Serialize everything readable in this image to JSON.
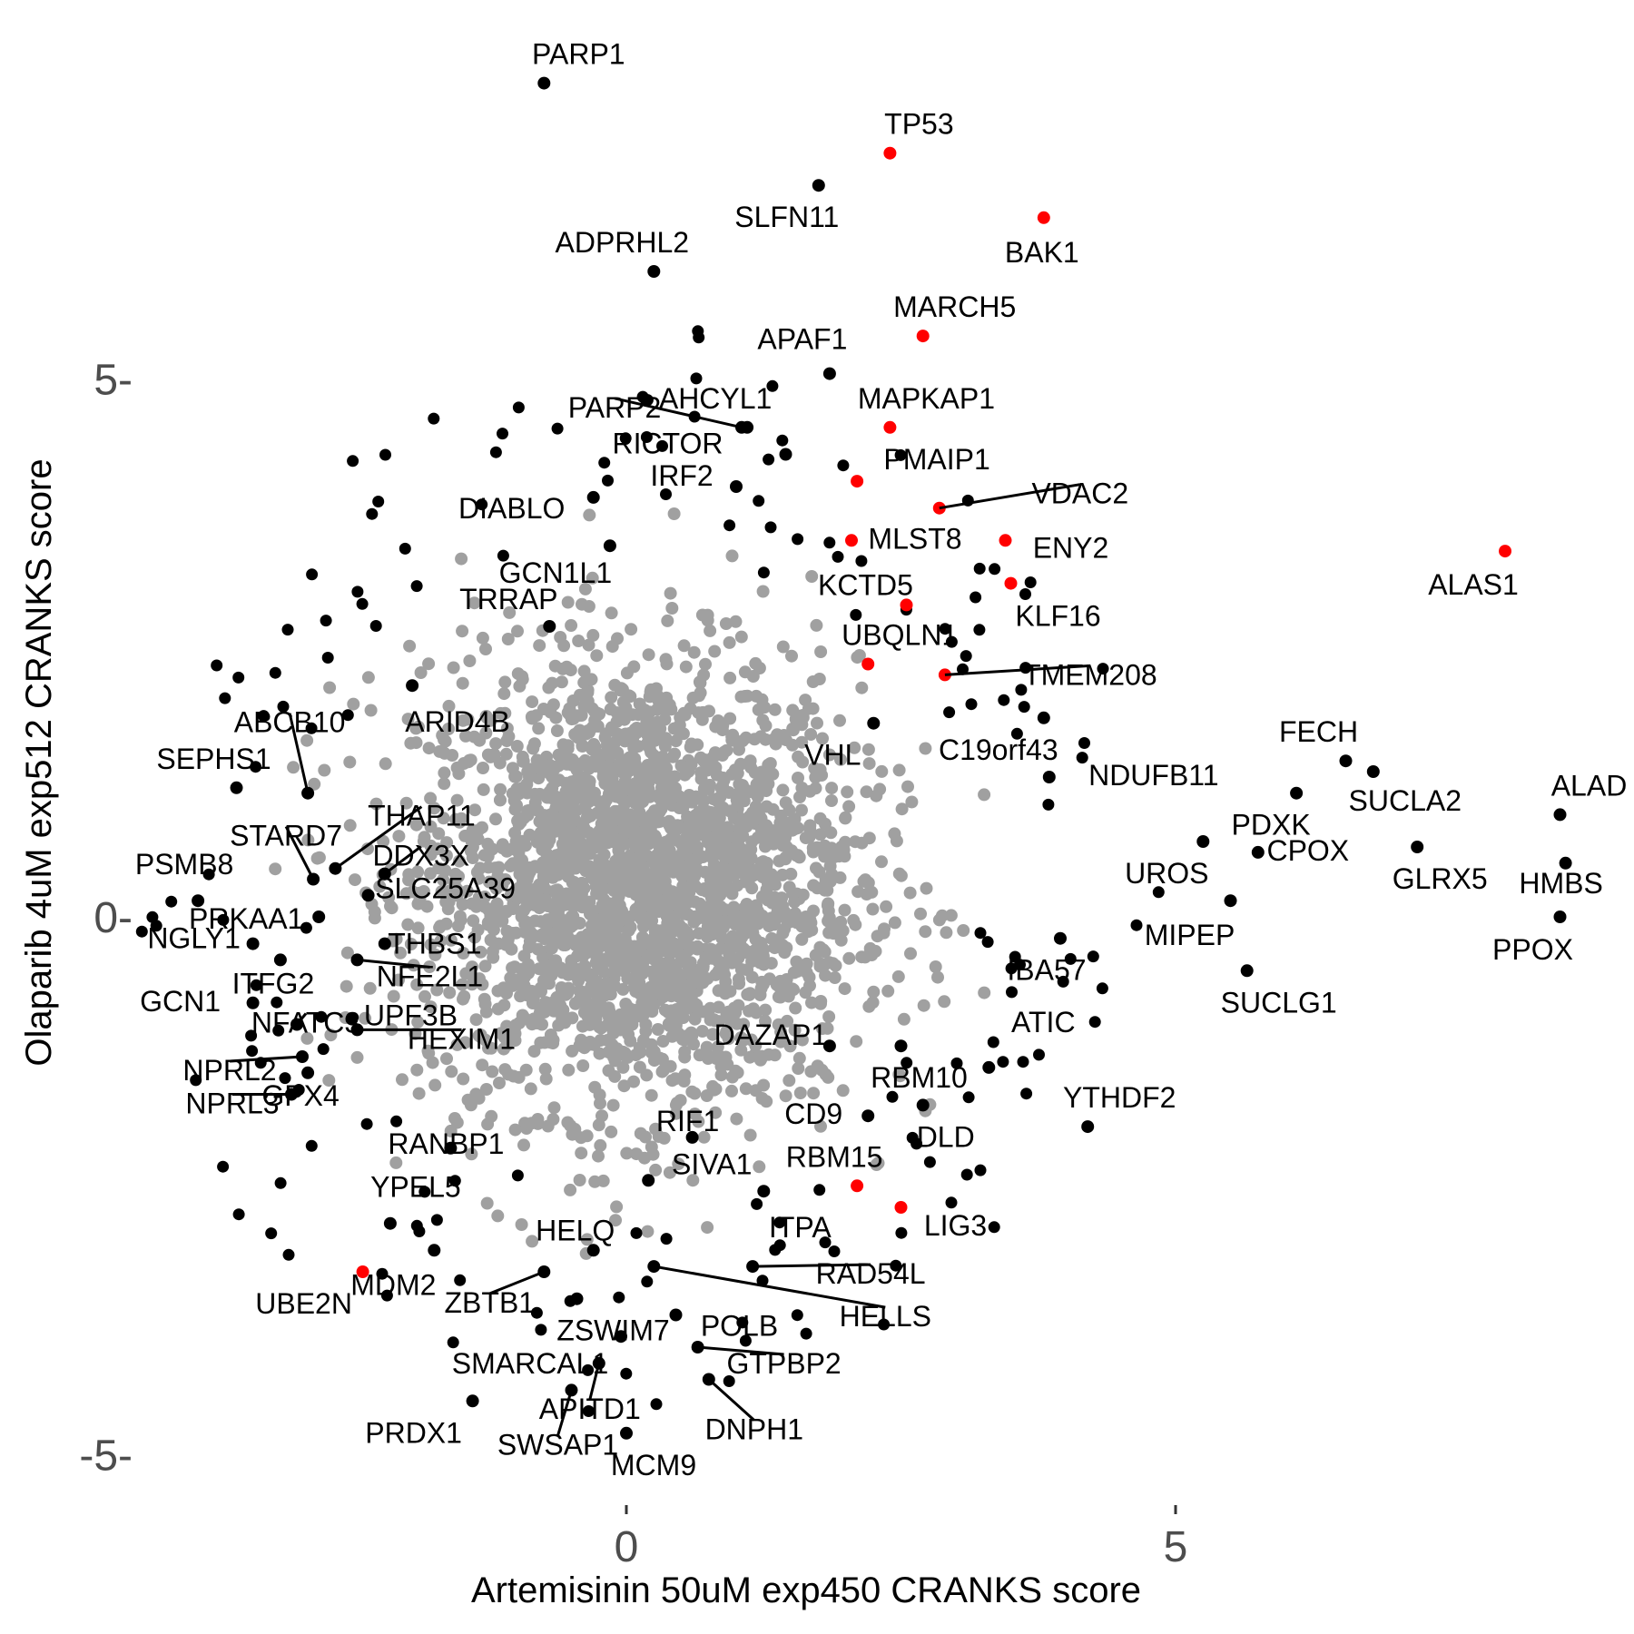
{
  "chart_data": {
    "type": "scatter",
    "title": "",
    "xlabel": "Artemisinin 50uM exp450 CRANKS score",
    "ylabel": "Olaparib 4uM exp512 CRANKS score",
    "xlim": [
      -4.6,
      9.0
    ],
    "ylim": [
      -5.4,
      7.8
    ],
    "x_ticks": [
      {
        "value": 0,
        "label": "0"
      },
      {
        "value": 5,
        "label": "5"
      }
    ],
    "y_ticks": [
      {
        "value": -5,
        "label": "-5-"
      },
      {
        "value": 0,
        "label": "0-"
      },
      {
        "value": 5,
        "label": "5-"
      }
    ],
    "grid": false,
    "legend": "none",
    "colors": {
      "background_cloud": "#a0a0a0",
      "black_points": "#000000",
      "red_points": "#ff0000",
      "connector": "#000000"
    },
    "background_cloud": {
      "description": "dense cloud of non-significant genes",
      "center": [
        0.1,
        0.3
      ],
      "spread": [
        1.0,
        1.05
      ]
    },
    "labeled_points": [
      {
        "label": "PARP1",
        "x": -0.75,
        "y": 7.75,
        "color": "black"
      },
      {
        "label": "TP53",
        "x": 2.4,
        "y": 7.1,
        "color": "red"
      },
      {
        "label": "SLFN11",
        "x": 1.75,
        "y": 6.8,
        "color": "black"
      },
      {
        "label": "BAK1",
        "x": 3.8,
        "y": 6.5,
        "color": "red"
      },
      {
        "label": "ADPRHL2",
        "x": 0.25,
        "y": 6.0,
        "color": "black"
      },
      {
        "label": "MARCH5",
        "x": 2.7,
        "y": 5.4,
        "color": "red"
      },
      {
        "label": "APAF1",
        "x": 1.85,
        "y": 5.05,
        "color": "black"
      },
      {
        "label": "MAPKAP1",
        "x": 2.4,
        "y": 4.55,
        "color": "red"
      },
      {
        "label": "AHCYL1",
        "x": 1.1,
        "y": 4.55,
        "color": "black"
      },
      {
        "label": "PARP2",
        "x": 1.05,
        "y": 4.55,
        "color": "black"
      },
      {
        "label": "RICTOR",
        "x": 1.45,
        "y": 4.3,
        "color": "black"
      },
      {
        "label": "PMAIP1",
        "x": 2.1,
        "y": 4.05,
        "color": "red"
      },
      {
        "label": "VDAC2",
        "x": 2.85,
        "y": 3.8,
        "color": "red"
      },
      {
        "label": "IRF2",
        "x": 1.0,
        "y": 4.0,
        "color": "black"
      },
      {
        "label": "DIABLO",
        "x": -0.3,
        "y": 3.9,
        "color": "black"
      },
      {
        "label": "GCN1L1",
        "x": -0.15,
        "y": 3.45,
        "color": "black"
      },
      {
        "label": "MLST8",
        "x": 2.05,
        "y": 3.5,
        "color": "red"
      },
      {
        "label": "ENY2",
        "x": 3.45,
        "y": 3.5,
        "color": "red"
      },
      {
        "label": "ALAS1",
        "x": 8.0,
        "y": 3.4,
        "color": "red"
      },
      {
        "label": "KLF16",
        "x": 3.5,
        "y": 3.1,
        "color": "red"
      },
      {
        "label": "TRRAP",
        "x": -0.7,
        "y": 2.7,
        "color": "black"
      },
      {
        "label": "KCTD5",
        "x": 2.55,
        "y": 2.9,
        "color": "red"
      },
      {
        "label": "UBQLN1",
        "x": 2.2,
        "y": 2.35,
        "color": "red"
      },
      {
        "label": "TMEM208",
        "x": 2.9,
        "y": 2.25,
        "color": "red"
      },
      {
        "label": "ARID4B",
        "x": -1.95,
        "y": 2.15,
        "color": "black"
      },
      {
        "label": "VHL",
        "x": 2.25,
        "y": 1.8,
        "color": "black"
      },
      {
        "label": "C19orf43",
        "x": 3.8,
        "y": 1.85,
        "color": "black"
      },
      {
        "label": "ABCB10",
        "x": -2.9,
        "y": 1.15,
        "color": "black"
      },
      {
        "label": "SEPHS1",
        "x": -3.55,
        "y": 1.2,
        "color": "black"
      },
      {
        "label": "NDUFB11",
        "x": 3.85,
        "y": 1.3,
        "color": "black"
      },
      {
        "label": "FECH",
        "x": 6.55,
        "y": 1.45,
        "color": "black"
      },
      {
        "label": "THAP11",
        "x": -2.65,
        "y": 0.45,
        "color": "black"
      },
      {
        "label": "STARD7",
        "x": -2.85,
        "y": 0.35,
        "color": "black"
      },
      {
        "label": "DDX3X",
        "x": -2.2,
        "y": 0.4,
        "color": "black"
      },
      {
        "label": "PDXK",
        "x": 6.1,
        "y": 1.15,
        "color": "black"
      },
      {
        "label": "SUCLA2",
        "x": 6.8,
        "y": 1.35,
        "color": "black"
      },
      {
        "label": "ALAD",
        "x": 8.5,
        "y": 0.95,
        "color": "black"
      },
      {
        "label": "PSMB8",
        "x": -3.9,
        "y": 0.15,
        "color": "black"
      },
      {
        "label": "SLC25A39",
        "x": -2.35,
        "y": 0.2,
        "color": "black"
      },
      {
        "label": "UROS",
        "x": 5.25,
        "y": 0.7,
        "color": "black"
      },
      {
        "label": "CPOX",
        "x": 5.75,
        "y": 0.6,
        "color": "black"
      },
      {
        "label": "GLRX5",
        "x": 7.2,
        "y": 0.65,
        "color": "black"
      },
      {
        "label": "HMBS",
        "x": 8.55,
        "y": 0.5,
        "color": "black"
      },
      {
        "label": "PRKAA1",
        "x": -2.8,
        "y": 0.0,
        "color": "black"
      },
      {
        "label": "MIPEP",
        "x": 5.5,
        "y": 0.15,
        "color": "black"
      },
      {
        "label": "PPOX",
        "x": 8.5,
        "y": 0.0,
        "color": "black"
      },
      {
        "label": "THBS1",
        "x": -2.2,
        "y": -0.25,
        "color": "black"
      },
      {
        "label": "IBA57",
        "x": 3.95,
        "y": -0.2,
        "color": "black"
      },
      {
        "label": "NGLY1",
        "x": -3.4,
        "y": -0.25,
        "color": "black"
      },
      {
        "label": "ITFG2",
        "x": -3.15,
        "y": -0.4,
        "color": "black"
      },
      {
        "label": "NFE2L1",
        "x": -2.45,
        "y": -0.4,
        "color": "black"
      },
      {
        "label": "SUCLG1",
        "x": 5.65,
        "y": -0.5,
        "color": "black"
      },
      {
        "label": "GCN1",
        "x": -3.4,
        "y": -0.8,
        "color": "black"
      },
      {
        "label": "NFATC3",
        "x": -3.0,
        "y": -1.0,
        "color": "black"
      },
      {
        "label": "ATIC",
        "x": 3.3,
        "y": -1.4,
        "color": "black"
      },
      {
        "label": "UPF3B",
        "x": -2.5,
        "y": -0.95,
        "color": "black"
      },
      {
        "label": "NPRL2",
        "x": -2.95,
        "y": -1.3,
        "color": "black"
      },
      {
        "label": "DAZAP1",
        "x": 1.85,
        "y": -1.2,
        "color": "black"
      },
      {
        "label": "RBM10",
        "x": 2.5,
        "y": -1.2,
        "color": "black"
      },
      {
        "label": "HEXIM1",
        "x": -2.45,
        "y": -1.05,
        "color": "black"
      },
      {
        "label": "GPX4",
        "x": -2.9,
        "y": -1.45,
        "color": "black"
      },
      {
        "label": "YTHDF2",
        "x": 4.2,
        "y": -1.95,
        "color": "black"
      },
      {
        "label": "CD9",
        "x": 2.2,
        "y": -1.85,
        "color": "black"
      },
      {
        "label": "DLD",
        "x": 2.7,
        "y": -1.75,
        "color": "black"
      },
      {
        "label": "NPRL3",
        "x": -3.05,
        "y": -1.65,
        "color": "black"
      },
      {
        "label": "RANBP1",
        "x": -1.6,
        "y": -2.15,
        "color": "black"
      },
      {
        "label": "RIF1",
        "x": 0.6,
        "y": -2.05,
        "color": "black"
      },
      {
        "label": "RBM15",
        "x": 2.1,
        "y": -2.5,
        "color": "red"
      },
      {
        "label": "YPEL5",
        "x": -2.15,
        "y": -2.85,
        "color": "black"
      },
      {
        "label": "LIG3",
        "x": 2.5,
        "y": -2.7,
        "color": "red"
      },
      {
        "label": "ITPA",
        "x": 1.25,
        "y": -2.55,
        "color": "black"
      },
      {
        "label": "SIVA1",
        "x": 0.2,
        "y": -2.45,
        "color": "black"
      },
      {
        "label": "HELQ",
        "x": -0.3,
        "y": -3.1,
        "color": "black"
      },
      {
        "label": "MDM2",
        "x": -1.75,
        "y": -3.1,
        "color": "black"
      },
      {
        "label": "UBE2N",
        "x": -2.4,
        "y": -3.3,
        "color": "red"
      },
      {
        "label": "RAD54L",
        "x": 1.15,
        "y": -3.25,
        "color": "black"
      },
      {
        "label": "HELLS",
        "x": 0.25,
        "y": -3.25,
        "color": "black"
      },
      {
        "label": "ZBTB1",
        "x": -0.75,
        "y": -3.3,
        "color": "black"
      },
      {
        "label": "ZSWIM7",
        "x": -0.45,
        "y": -3.55,
        "color": "black"
      },
      {
        "label": "POLB",
        "x": 0.45,
        "y": -3.7,
        "color": "black"
      },
      {
        "label": "SMARCAL1",
        "x": -0.05,
        "y": -3.9,
        "color": "black"
      },
      {
        "label": "GTPBP2",
        "x": 0.65,
        "y": -4.0,
        "color": "black"
      },
      {
        "label": "APITD1",
        "x": -0.25,
        "y": -4.15,
        "color": "black"
      },
      {
        "label": "PRDX1",
        "x": -1.4,
        "y": -4.5,
        "color": "black"
      },
      {
        "label": "SWSAP1",
        "x": -0.5,
        "y": -4.4,
        "color": "black"
      },
      {
        "label": "DNPH1",
        "x": 0.75,
        "y": -4.3,
        "color": "black"
      },
      {
        "label": "MCM9",
        "x": 0.0,
        "y": -4.8,
        "color": "black"
      }
    ]
  }
}
